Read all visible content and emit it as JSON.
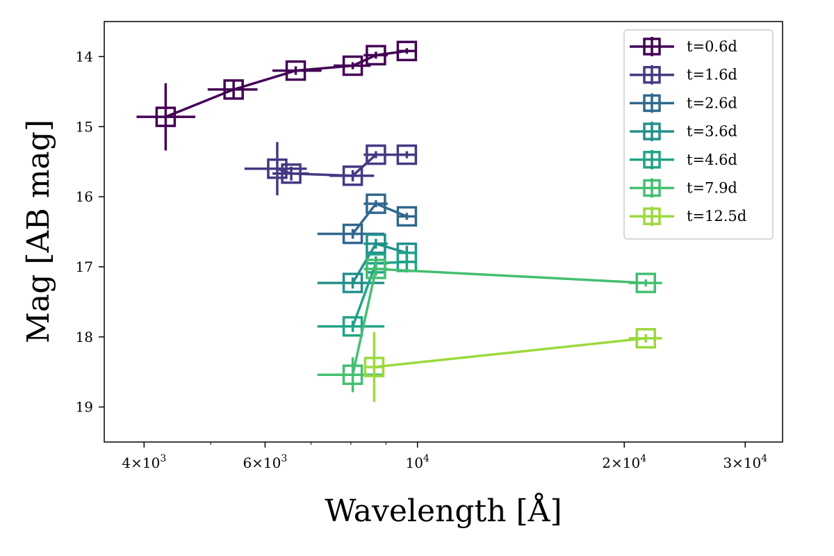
{
  "chart_data": {
    "type": "scatter",
    "xlabel": "Wavelength [Å]",
    "ylabel": "Mag [AB mag]",
    "x_scale": "log",
    "xlim": [
      3500,
      34000
    ],
    "ylim": [
      19.5,
      13.5
    ],
    "y_inverted": true,
    "grid": false,
    "legend_position": "top-right",
    "x_tick_labels": [
      {
        "value": 4000,
        "mantissa": "4",
        "exponent": "3"
      },
      {
        "value": 6000,
        "mantissa": "6",
        "exponent": "3"
      },
      {
        "value": 10000,
        "mantissa": "",
        "exponent": "4"
      },
      {
        "value": 20000,
        "mantissa": "2",
        "exponent": "4"
      },
      {
        "value": 30000,
        "mantissa": "3",
        "exponent": "4"
      }
    ],
    "x_minor_ticks": [
      5000,
      7000,
      8000,
      9000
    ],
    "y_ticks": [
      14,
      15,
      16,
      17,
      18,
      19
    ],
    "series": [
      {
        "name": "t=0.6d",
        "color": "#440154",
        "points": [
          {
            "x": 4300,
            "y": 14.86,
            "xerr": [
              400,
              450
            ],
            "yerr": 0.48
          },
          {
            "x": 5400,
            "y": 14.47,
            "xerr": [
              450,
              450
            ],
            "yerr": 0.12
          },
          {
            "x": 6650,
            "y": 14.2,
            "xerr": [
              500,
              600
            ],
            "yerr": 0.06
          },
          {
            "x": 8050,
            "y": 14.13,
            "xerr": [
              500,
              500
            ],
            "yerr": 0.05
          },
          {
            "x": 8700,
            "y": 13.98,
            "xerr": [
              350,
              350
            ],
            "yerr": 0.05
          },
          {
            "x": 9650,
            "y": 13.92,
            "xerr": [
              300,
              300
            ],
            "yerr": 0.04
          }
        ]
      },
      {
        "name": "t=1.6d",
        "color": "#443983",
        "points": [
          {
            "x": 6250,
            "y": 15.6,
            "xerr": [
              650,
              650
            ],
            "yerr": 0.38
          },
          {
            "x": 6550,
            "y": 15.67,
            "xerr": [
              400,
              400
            ],
            "yerr": 0.1
          },
          {
            "x": 8050,
            "y": 15.7,
            "xerr": [
              600,
              600
            ],
            "yerr": 0.08
          },
          {
            "x": 8700,
            "y": 15.4,
            "xerr": [
              350,
              350
            ],
            "yerr": 0.05
          },
          {
            "x": 9650,
            "y": 15.4,
            "xerr": [
              300,
              300
            ],
            "yerr": 0.05
          }
        ]
      },
      {
        "name": "t=2.6d",
        "color": "#31688e",
        "points": [
          {
            "x": 8050,
            "y": 16.53,
            "xerr": [
              900,
              900
            ],
            "yerr": 0.07
          },
          {
            "x": 8700,
            "y": 16.1,
            "xerr": [
              350,
              350
            ],
            "yerr": 0.05
          },
          {
            "x": 9650,
            "y": 16.28,
            "xerr": [
              300,
              300
            ],
            "yerr": 0.05
          }
        ]
      },
      {
        "name": "t=3.6d",
        "color": "#21918c",
        "points": [
          {
            "x": 8050,
            "y": 17.23,
            "xerr": [
              900,
              900
            ],
            "yerr": 0.08
          },
          {
            "x": 8700,
            "y": 16.67,
            "xerr": [
              350,
              350
            ],
            "yerr": 0.07
          },
          {
            "x": 9650,
            "y": 16.8,
            "xerr": [
              300,
              300
            ],
            "yerr": 0.1
          }
        ]
      },
      {
        "name": "t=4.6d",
        "color": "#20a386",
        "points": [
          {
            "x": 8050,
            "y": 17.85,
            "xerr": [
              900,
              900
            ],
            "yerr": 0.08
          },
          {
            "x": 8700,
            "y": 16.95,
            "xerr": [
              350,
              350
            ],
            "yerr": 0.1
          },
          {
            "x": 9650,
            "y": 16.93,
            "xerr": [
              300,
              300
            ],
            "yerr": 0.15
          }
        ]
      },
      {
        "name": "t=7.9d",
        "color": "#44bf70",
        "points": [
          {
            "x": 8050,
            "y": 18.54,
            "xerr": [
              900,
              900
            ],
            "yerr": 0.25
          },
          {
            "x": 8700,
            "y": 17.03,
            "xerr": [
              350,
              350
            ],
            "yerr": 0.1
          },
          {
            "x": 21500,
            "y": 17.23,
            "xerr": [
              1200,
              1200
            ],
            "yerr": 0.05
          }
        ]
      },
      {
        "name": "t=12.5d",
        "color": "#9bd93c",
        "points": [
          {
            "x": 8650,
            "y": 18.43,
            "xerr": [
              250,
              250
            ],
            "yerr": 0.5
          },
          {
            "x": 21500,
            "y": 18.02,
            "xerr": [
              1200,
              1200
            ],
            "yerr": 0.06
          }
        ]
      }
    ]
  }
}
